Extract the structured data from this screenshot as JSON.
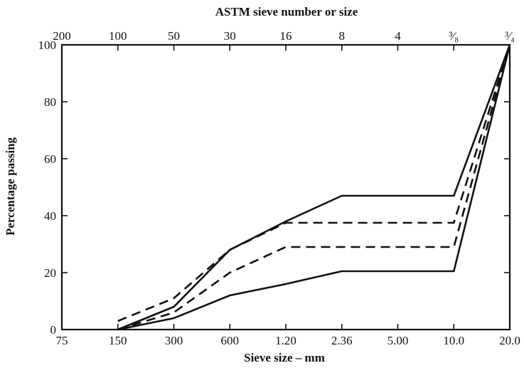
{
  "chart_data": {
    "type": "line",
    "top_axis_title": "ASTM sieve number or size",
    "top_tick_labels": [
      "200",
      "100",
      "50",
      "30",
      "16",
      "8",
      "4",
      "³⁄₈",
      "³⁄₄"
    ],
    "xlabel": "Sieve size – mm",
    "bottom_tick_labels": [
      "75",
      "150",
      "300",
      "600",
      "1.20",
      "2.36",
      "5.00",
      "10.0",
      "20.0"
    ],
    "ylabel": "Percentage passing",
    "y_tick_labels": [
      "0",
      "20",
      "40",
      "60",
      "80",
      "100"
    ],
    "ylim": [
      0,
      100
    ],
    "x_scale": "sieve sequence (equally spaced positions)",
    "grid": false,
    "legend": "none",
    "series": [
      {
        "style": "solid",
        "x": [
          "150",
          "300",
          "600",
          "1.20",
          "2.36",
          "10.0",
          "20.0"
        ],
        "values": [
          0,
          8,
          28,
          38,
          47,
          47,
          100
        ]
      },
      {
        "style": "dashed",
        "x": [
          "150",
          "300",
          "600",
          "1.20",
          "2.36",
          "10.0",
          "20.0"
        ],
        "values": [
          3,
          11,
          28,
          37.5,
          37.5,
          37.5,
          100
        ]
      },
      {
        "style": "dashed",
        "x": [
          "150",
          "300",
          "600",
          "1.20",
          "2.36",
          "10.0",
          "20.0"
        ],
        "values": [
          0,
          6,
          20,
          29,
          29,
          29,
          100
        ]
      },
      {
        "style": "solid",
        "x": [
          "150",
          "300",
          "600",
          "1.20",
          "2.36",
          "10.0",
          "20.0"
        ],
        "values": [
          0,
          4,
          12,
          16,
          20.5,
          20.5,
          100
        ]
      }
    ]
  }
}
